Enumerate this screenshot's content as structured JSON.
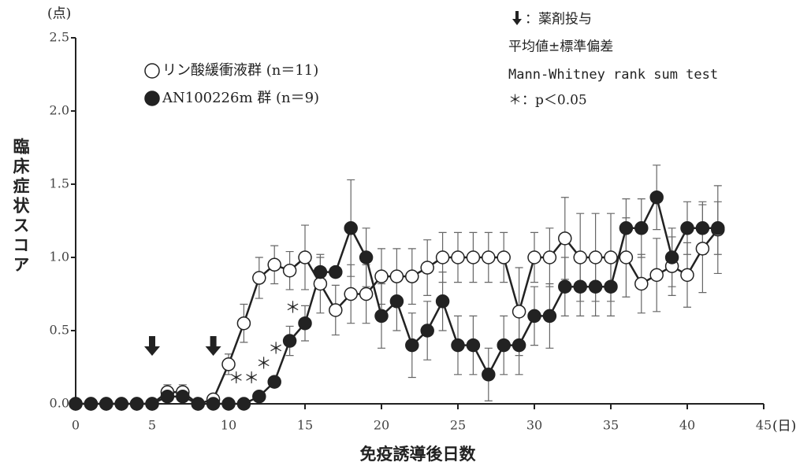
{
  "chart_data": {
    "type": "line",
    "y_unit": "(点)",
    "x_unit": "(日)",
    "ylabel": "臨床症状スコア",
    "xlabel": "免疫誘導後日数",
    "xlim": [
      0,
      45
    ],
    "xticks": [
      0,
      5,
      10,
      15,
      20,
      25,
      30,
      35,
      40,
      45
    ],
    "ylim": [
      0,
      2.5
    ],
    "yticks": [
      {
        "value": 0,
        "label": "0.0"
      },
      0.5,
      {
        "value": 1,
        "label": "1.0"
      },
      1.5,
      {
        "value": 2,
        "label": "2.0"
      },
      2.5
    ],
    "x": [
      0,
      1,
      2,
      3,
      4,
      5,
      6,
      7,
      8,
      9,
      10,
      11,
      12,
      13,
      14,
      15,
      16,
      17,
      18,
      19,
      20,
      21,
      22,
      23,
      24,
      25,
      26,
      27,
      28,
      29,
      30,
      31,
      32,
      33,
      34,
      35,
      36,
      37,
      38,
      39,
      40,
      41,
      42
    ],
    "series": [
      {
        "name": "リン酸緩衝液群 (n＝11)",
        "marker": "open",
        "color": "#222222",
        "values": [
          0,
          0,
          0,
          0,
          0,
          0,
          0.08,
          0.08,
          0,
          0.03,
          0.27,
          0.55,
          0.86,
          0.95,
          0.91,
          1.0,
          0.82,
          0.64,
          0.75,
          0.75,
          0.87,
          0.87,
          0.87,
          0.93,
          1.0,
          1.0,
          1.0,
          1.0,
          1.0,
          0.63,
          1.0,
          1.0,
          1.13,
          1.0,
          1.0,
          1.0,
          1.0,
          0.82,
          0.88,
          0.94,
          0.88,
          1.06,
          1.19
        ],
        "errors": [
          0,
          0,
          0,
          0,
          0,
          0,
          0.05,
          0.05,
          0,
          0,
          0.07,
          0.13,
          0.14,
          0.13,
          0.13,
          0.22,
          0.2,
          0.17,
          0.2,
          0.2,
          0.19,
          0.19,
          0.19,
          0.19,
          0.17,
          0.17,
          0.17,
          0.17,
          0.17,
          0.3,
          0.17,
          0.2,
          0.28,
          0.3,
          0.3,
          0.3,
          0.27,
          0.2,
          0.25,
          0.2,
          0.22,
          0.3,
          0.3
        ]
      },
      {
        "name": "AN100226m 群 (n＝9)",
        "marker": "filled",
        "color": "#222222",
        "values": [
          0,
          0,
          0,
          0,
          0,
          0,
          0.05,
          0.05,
          0,
          0,
          0,
          0,
          0.05,
          0.15,
          0.43,
          0.55,
          0.9,
          0.9,
          1.2,
          1.0,
          0.6,
          0.7,
          0.4,
          0.5,
          0.7,
          0.4,
          0.4,
          0.2,
          0.4,
          0.4,
          0.6,
          0.6,
          0.8,
          0.8,
          0.8,
          0.8,
          1.2,
          1.2,
          1.41,
          1.0,
          1.2,
          1.2,
          1.2
        ],
        "errors": [
          0,
          0,
          0,
          0,
          0,
          0,
          0,
          0,
          0,
          0,
          0,
          0,
          0,
          0,
          0.1,
          0.12,
          0.1,
          0,
          0.33,
          0.2,
          0.22,
          0.2,
          0.22,
          0.2,
          0.2,
          0.2,
          0.2,
          0.18,
          0.2,
          0.2,
          0.2,
          0.22,
          0.2,
          0.2,
          0.2,
          0.2,
          0.2,
          0.2,
          0.22,
          0.2,
          0.18,
          0.18,
          0.18
        ]
      }
    ],
    "dosing_days": [
      5,
      9
    ],
    "significance": {
      "label": "＊",
      "x": [
        10.5,
        11.5,
        12.3,
        13.1,
        14.2
      ],
      "y": [
        0.17,
        0.17,
        0.27,
        0.37,
        0.65
      ]
    },
    "notes": [
      "：薬剤投与",
      "平均値±標準偏差",
      "Mann-Whitney rank sum test",
      "＊：p＜0.05"
    ]
  }
}
